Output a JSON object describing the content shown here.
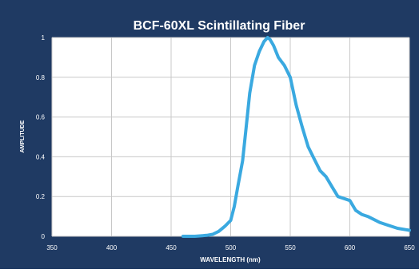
{
  "chart_data": {
    "type": "line",
    "title": "BCF-60XL Scintillating Fiber",
    "xlabel": "WAVELENGTH (nm)",
    "ylabel": "AMPLITUDE",
    "xlim": [
      350,
      650
    ],
    "ylim": [
      0,
      1
    ],
    "xticks": [
      350,
      400,
      450,
      500,
      550,
      600,
      650
    ],
    "yticks": [
      0,
      0.2,
      0.4,
      0.6,
      0.8,
      1
    ],
    "grid": true,
    "colors": {
      "background": "#1f3a63",
      "plot_area": "#ffffff",
      "line": "#3aa9e0",
      "grid": "#c8c8c8"
    },
    "series": [
      {
        "x": [
          460,
          470,
          480,
          485,
          490,
          495,
          500,
          503,
          506,
          510,
          513,
          516,
          520,
          524,
          528,
          531,
          533,
          536,
          540,
          545,
          550,
          555,
          560,
          565,
          570,
          575,
          580,
          585,
          590,
          595,
          600,
          605,
          610,
          615,
          620,
          625,
          630,
          640,
          650
        ],
        "y": [
          0.0,
          0.0,
          0.005,
          0.01,
          0.025,
          0.05,
          0.08,
          0.15,
          0.25,
          0.38,
          0.55,
          0.72,
          0.86,
          0.93,
          0.98,
          1.0,
          0.99,
          0.96,
          0.9,
          0.86,
          0.8,
          0.66,
          0.55,
          0.45,
          0.39,
          0.33,
          0.3,
          0.25,
          0.2,
          0.19,
          0.18,
          0.13,
          0.11,
          0.1,
          0.085,
          0.07,
          0.06,
          0.04,
          0.03
        ]
      }
    ]
  }
}
